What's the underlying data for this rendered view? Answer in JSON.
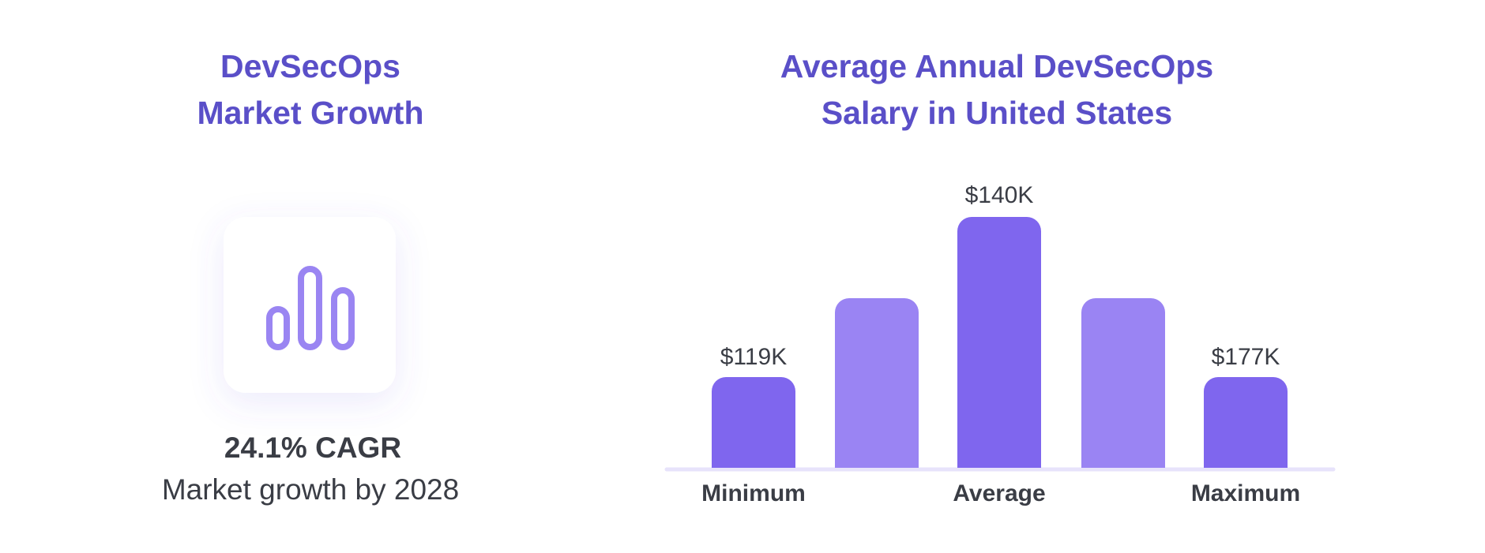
{
  "growth": {
    "title": [
      "DevSecOps",
      "Market Growth"
    ],
    "stat": "24.1% CAGR",
    "caption": "Market growth by 2028"
  },
  "salary": {
    "title": [
      "Average Annual DevSecOps",
      "Salary in United States"
    ],
    "labels": [
      {
        "category": "Minimum",
        "amount": "$119K"
      },
      {
        "category": "Average",
        "amount": "$140K"
      },
      {
        "category": "Maximum",
        "amount": "$177K"
      }
    ]
  }
}
